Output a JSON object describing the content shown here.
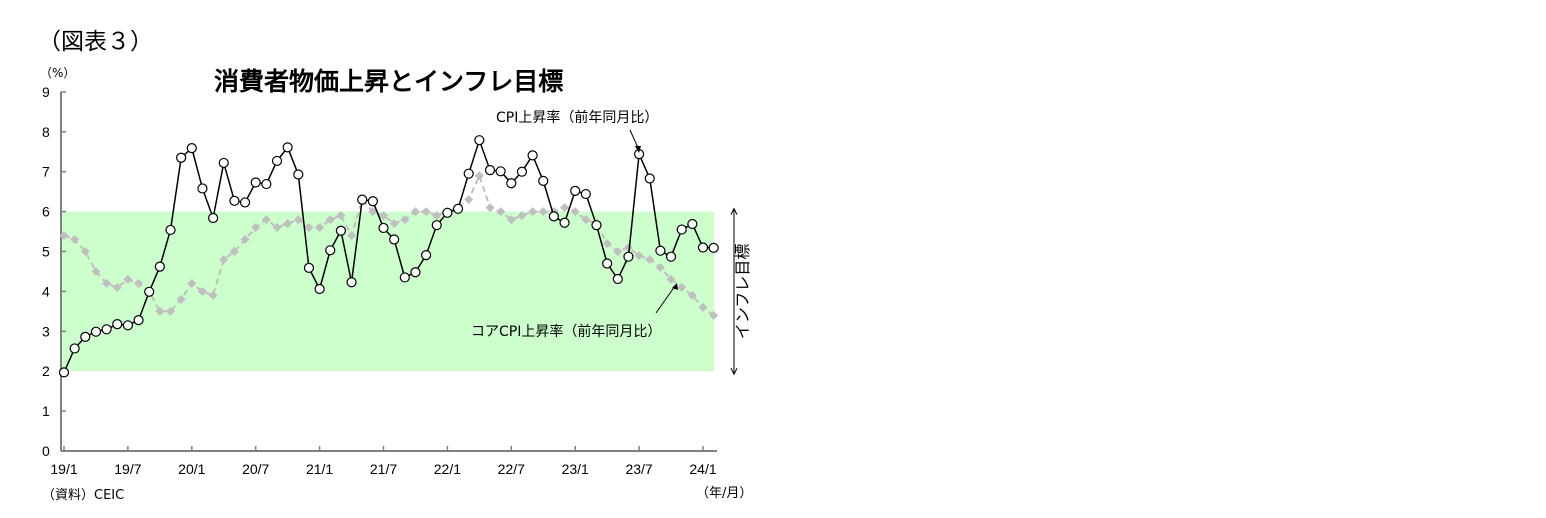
{
  "figure_label": "（図表３）",
  "title": "消費者物価上昇とインフレ目標",
  "y_unit": "（%）",
  "x_unit": "（年/月）",
  "source": "（資料）CEIC",
  "colors": {
    "band": "#ccffcc",
    "cpi": "#000000",
    "core": "#bfbfbf",
    "axis": "#808080"
  },
  "chart_data": {
    "type": "line",
    "title": "消費者物価上昇とインフレ目標",
    "xlabel": "（年/月）",
    "ylabel": "（%）",
    "ylim": [
      0,
      9
    ],
    "yticks": [
      0,
      1,
      2,
      3,
      4,
      5,
      6,
      7,
      8,
      9
    ],
    "xtick_labels": [
      "19/1",
      "19/7",
      "20/1",
      "20/7",
      "21/1",
      "21/7",
      "22/1",
      "22/7",
      "23/1",
      "23/7",
      "24/1"
    ],
    "grid": false,
    "start": "2019-01",
    "end": "2024-02",
    "band": {
      "label": "インフレ目標",
      "low": 2,
      "high": 6
    },
    "series": [
      {
        "name": "CPI上昇率（前年同月比）",
        "style": "solid black line, white circle markers",
        "values": [
          1.97,
          2.57,
          2.86,
          2.99,
          3.05,
          3.18,
          3.15,
          3.28,
          3.99,
          4.62,
          5.54,
          7.35,
          7.59,
          6.58,
          5.84,
          7.22,
          6.27,
          6.23,
          6.73,
          6.69,
          7.27,
          7.61,
          6.93,
          4.59,
          4.06,
          5.03,
          5.52,
          4.23,
          6.3,
          6.26,
          5.59,
          5.3,
          4.35,
          4.48,
          4.91,
          5.66,
          5.97,
          6.07,
          6.95,
          7.79,
          7.04,
          7.01,
          6.71,
          7.0,
          7.41,
          6.77,
          5.88,
          5.72,
          6.52,
          6.44,
          5.66,
          4.7,
          4.31,
          4.87,
          7.44,
          6.83,
          5.02,
          4.87,
          5.55,
          5.69,
          5.1,
          5.09
        ]
      },
      {
        "name": "コアCPI上昇率（前年同月比）",
        "style": "dashed gray line, diamond markers",
        "values": [
          5.4,
          5.3,
          5.0,
          4.5,
          4.2,
          4.1,
          4.3,
          4.2,
          4.0,
          3.5,
          3.5,
          3.8,
          4.2,
          4.0,
          3.9,
          4.8,
          5.0,
          5.3,
          5.6,
          5.8,
          5.6,
          5.7,
          5.8,
          5.6,
          5.6,
          5.8,
          5.9,
          5.4,
          6.3,
          6.0,
          5.9,
          5.7,
          5.8,
          6.0,
          6.0,
          5.9,
          6.0,
          6.1,
          6.3,
          6.9,
          6.1,
          6.0,
          5.8,
          5.9,
          6.0,
          6.0,
          6.0,
          6.1,
          6.0,
          5.8,
          5.7,
          5.2,
          5.0,
          5.1,
          4.9,
          4.8,
          4.6,
          4.3,
          4.1,
          3.9,
          3.6,
          3.4
        ]
      }
    ],
    "annotations": [
      "CPI上昇率（前年同月比）",
      "コアCPI上昇率（前年同月比）",
      "インフレ目標"
    ]
  }
}
